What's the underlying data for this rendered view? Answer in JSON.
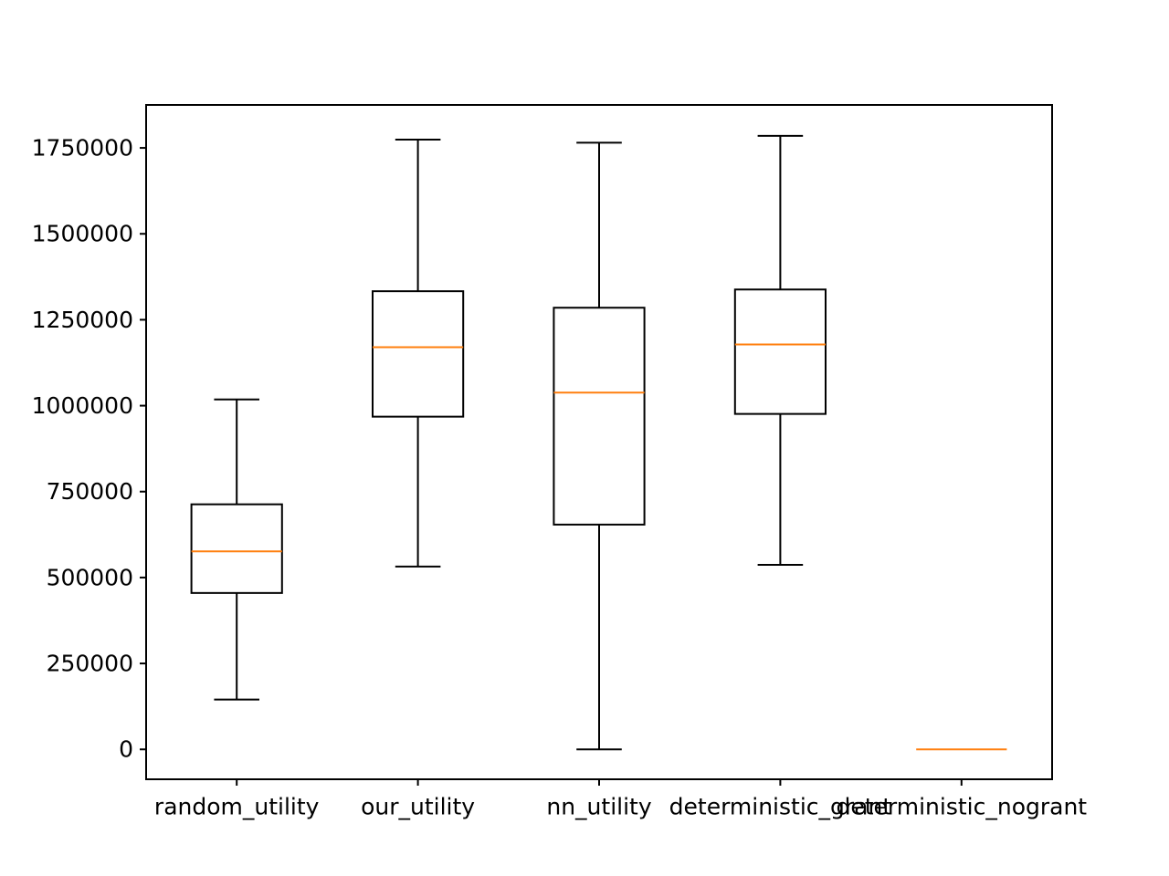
{
  "chart_data": {
    "type": "box",
    "title": "",
    "xlabel": "",
    "ylabel": "",
    "ylim": [
      -87000,
      1875000
    ],
    "yticks": [
      0,
      250000,
      500000,
      750000,
      1000000,
      1250000,
      1500000,
      1750000
    ],
    "ytick_labels": [
      "0",
      "250000",
      "500000",
      "750000",
      "1000000",
      "1250000",
      "1500000",
      "1750000"
    ],
    "categories": [
      "random_utility",
      "our_utility",
      "nn_utility",
      "deterministic_grant",
      "deterministic_nogrant"
    ],
    "boxes": [
      {
        "whisker_low": 145000,
        "q1": 455000,
        "median": 576000,
        "q3": 713000,
        "whisker_high": 1018000
      },
      {
        "whisker_low": 532000,
        "q1": 968000,
        "median": 1170000,
        "q3": 1333000,
        "whisker_high": 1774000
      },
      {
        "whisker_low": 0,
        "q1": 654000,
        "median": 1038000,
        "q3": 1285000,
        "whisker_high": 1765000
      },
      {
        "whisker_low": 537000,
        "q1": 976000,
        "median": 1178000,
        "q3": 1338000,
        "whisker_high": 1785000
      },
      {
        "whisker_low": 0,
        "q1": 0,
        "median": 0,
        "q3": 0,
        "whisker_high": 0
      }
    ],
    "colors": {
      "box": "#000000",
      "median": "#ff7f0e",
      "axes": "#000000"
    },
    "grid": false,
    "legend": "none"
  }
}
